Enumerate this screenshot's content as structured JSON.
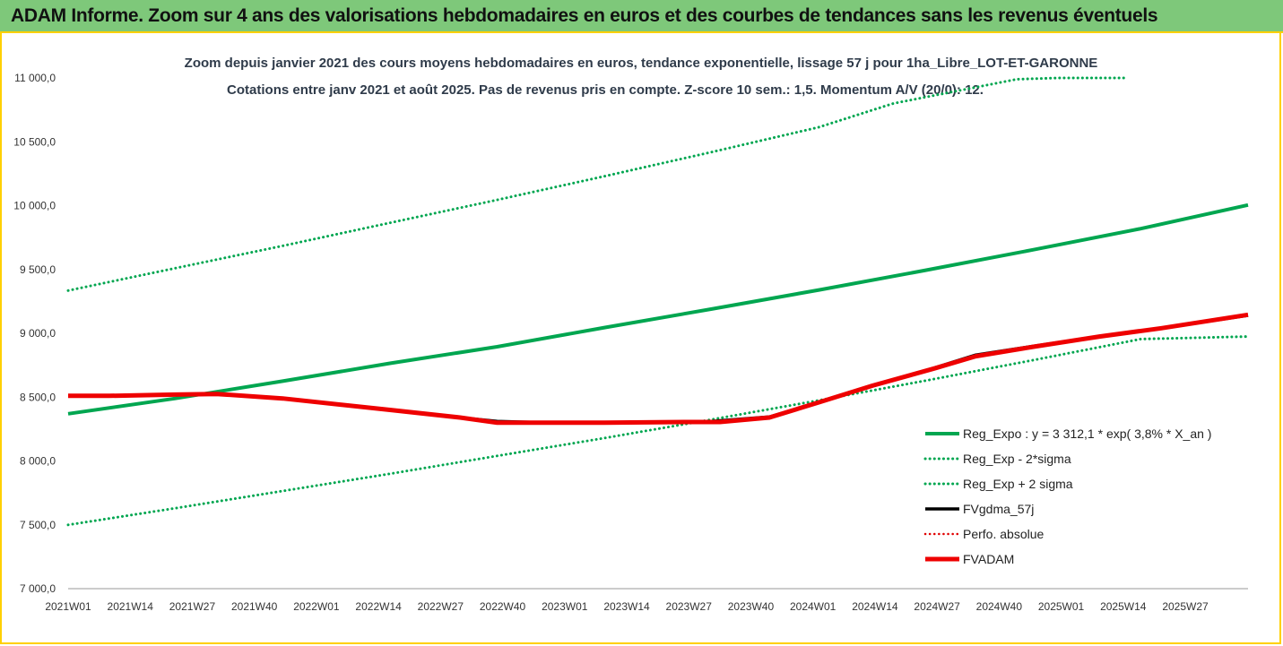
{
  "header": {
    "title": "ADAM Informe. Zoom sur 4 ans des valorisations hebdomadaires en euros et des courbes de tendances sans les revenus éventuels"
  },
  "chart_data": {
    "type": "line",
    "title": "Zoom depuis janvier 2021 des cours moyens hebdomadaires en euros, tendance exponentielle, lissage 57 j pour 1ha_Libre_LOT-ET-GARONNE",
    "subtitle": "Cotations entre janv 2021 et août 2025.  Pas de revenus pris en compte. Z-score 10 sem.: 1,5. Momentum A/V (20/0): 12.",
    "xlabel": "",
    "ylabel": "",
    "ylim": [
      7000,
      11000
    ],
    "yticks": [
      "11 000,0",
      "10 500,0",
      "10 000,0",
      "9 500,0",
      "9 000,0",
      "8 500,0",
      "8 000,0",
      "7 500,0",
      "7 000,0"
    ],
    "x_tick_labels": [
      "2021W01",
      "2021W14",
      "2021W27",
      "2021W40",
      "2022W01",
      "2022W14",
      "2022W27",
      "2022W40",
      "2023W01",
      "2023W14",
      "2023W27",
      "2023W40",
      "2024W01",
      "2024W14",
      "2024W27",
      "2024W40",
      "2025W01",
      "2025W14",
      "2025W27"
    ],
    "x_range_weeks": [
      0,
      242
    ],
    "grid": false,
    "legend_position": "bottom-right",
    "series": [
      {
        "name": "Reg_Expo : y = 3 312,1 * exp( 3,8% *  X_an )",
        "style": "solid",
        "color": "#00a650",
        "width": 4,
        "points": [
          [
            0,
            8370
          ],
          [
            26,
            8490
          ],
          [
            52,
            8625
          ],
          [
            78,
            8765
          ],
          [
            104,
            8895
          ],
          [
            130,
            9045
          ],
          [
            156,
            9190
          ],
          [
            182,
            9340
          ],
          [
            208,
            9495
          ],
          [
            234,
            9655
          ],
          [
            260,
            9820
          ],
          [
            286,
            10005
          ]
        ]
      },
      {
        "name": "Reg_Exp - 2*sigma",
        "style": "dotted",
        "color": "#00a650",
        "width": 3,
        "points": [
          [
            0,
            7500
          ],
          [
            26,
            7630
          ],
          [
            52,
            7765
          ],
          [
            78,
            7900
          ],
          [
            104,
            8040
          ],
          [
            130,
            8180
          ],
          [
            156,
            8325
          ],
          [
            182,
            8475
          ],
          [
            208,
            8630
          ],
          [
            234,
            8790
          ],
          [
            260,
            8955
          ],
          [
            286,
            8975
          ]
        ]
      },
      {
        "name": "Reg_Exp + 2 sigma",
        "style": "dotted",
        "color": "#00a650",
        "width": 3,
        "points": [
          [
            0,
            9335
          ],
          [
            26,
            9510
          ],
          [
            52,
            9685
          ],
          [
            78,
            9865
          ],
          [
            104,
            10045
          ],
          [
            130,
            10230
          ],
          [
            156,
            10420
          ],
          [
            182,
            10615
          ],
          [
            198,
            10780
          ],
          [
            200,
            10800
          ],
          [
            230,
            10990
          ],
          [
            240,
            11000
          ],
          [
            256,
            11000
          ]
        ]
      },
      {
        "name": "FVgdma_57j",
        "style": "solid",
        "color": "#000000",
        "width": 3.5,
        "points": [
          [
            0,
            8510
          ],
          [
            10,
            8510
          ],
          [
            26,
            8520
          ],
          [
            36,
            8525
          ],
          [
            52,
            8490
          ],
          [
            78,
            8400
          ],
          [
            95,
            8340
          ],
          [
            104,
            8310
          ],
          [
            116,
            8300
          ],
          [
            130,
            8300
          ],
          [
            150,
            8305
          ],
          [
            156,
            8310
          ],
          [
            170,
            8345
          ],
          [
            182,
            8460
          ],
          [
            195,
            8590
          ],
          [
            210,
            8730
          ],
          [
            220,
            8830
          ],
          [
            234,
            8900
          ],
          [
            250,
            8975
          ],
          [
            265,
            9040
          ],
          [
            286,
            9140
          ]
        ]
      },
      {
        "name": "Perfo. absolue",
        "style": "dotted",
        "color": "#e00000",
        "width": 2,
        "points": []
      },
      {
        "name": "FVADAM",
        "style": "solid",
        "color": "#ee0000",
        "width": 5,
        "points": [
          [
            0,
            8510
          ],
          [
            10,
            8510
          ],
          [
            26,
            8520
          ],
          [
            36,
            8525
          ],
          [
            52,
            8490
          ],
          [
            78,
            8400
          ],
          [
            95,
            8340
          ],
          [
            104,
            8300
          ],
          [
            116,
            8300
          ],
          [
            130,
            8300
          ],
          [
            150,
            8305
          ],
          [
            158,
            8305
          ],
          [
            170,
            8340
          ],
          [
            182,
            8460
          ],
          [
            195,
            8590
          ],
          [
            210,
            8725
          ],
          [
            220,
            8820
          ],
          [
            234,
            8895
          ],
          [
            250,
            8975
          ],
          [
            265,
            9040
          ],
          [
            286,
            9145
          ]
        ]
      }
    ]
  }
}
